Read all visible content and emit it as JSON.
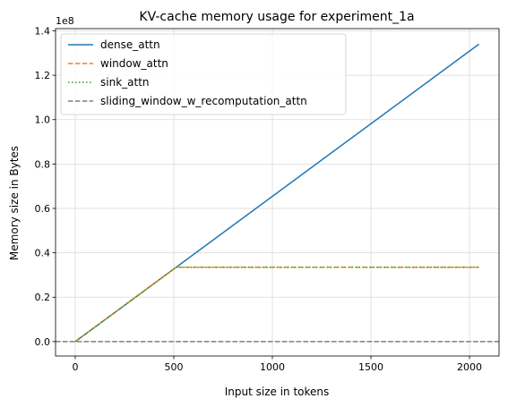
{
  "chart_data": {
    "type": "line",
    "title": "KV-cache memory usage for experiment_1a",
    "xlabel": "Input size in tokens",
    "ylabel": "Memory size in Bytes",
    "y_offset_text": "1e8",
    "xlim": [
      -100,
      2150
    ],
    "ylim": [
      -0.065,
      1.41
    ],
    "y_scale_factor": 100000000,
    "xticks": [
      0,
      500,
      1000,
      1500,
      2000
    ],
    "xtick_labels": [
      "0",
      "500",
      "1000",
      "1500",
      "2000"
    ],
    "yticks": [
      0.0,
      0.2,
      0.4,
      0.6,
      0.8,
      1.0,
      1.2,
      1.4
    ],
    "ytick_labels": [
      "0.0",
      "0.2",
      "0.4",
      "0.6",
      "0.8",
      "1.0",
      "1.2",
      "1.4"
    ],
    "grid": true,
    "legend_position": "top-left",
    "series": [
      {
        "name": "dense_attn",
        "color": "#1f77b4",
        "dash": "solid",
        "x": [
          0,
          2048
        ],
        "y": [
          0.0,
          1.34
        ]
      },
      {
        "name": "window_attn",
        "color": "#ff7f0e",
        "dash": "dashed",
        "x": [
          0,
          512,
          2048
        ],
        "y": [
          0.0,
          0.335,
          0.335
        ]
      },
      {
        "name": "sink_attn",
        "color": "#2ca02c",
        "dash": "dotted",
        "x": [
          0,
          512,
          2048
        ],
        "y": [
          0.0,
          0.335,
          0.335
        ]
      },
      {
        "name": "sliding_window_w_recomputation_attn",
        "color": "#7f7f7f",
        "dash": "dashed",
        "x": [
          -100,
          2150
        ],
        "y": [
          0.0,
          0.0
        ]
      }
    ]
  }
}
